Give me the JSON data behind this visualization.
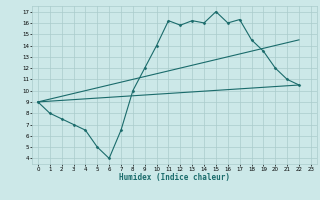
{
  "xlabel": "Humidex (Indice chaleur)",
  "bg_color": "#cce8e8",
  "grid_color": "#aacccc",
  "line_color": "#1a6b6b",
  "xmin": -0.5,
  "xmax": 23.5,
  "ymin": 3.5,
  "ymax": 17.5,
  "x_ticks": [
    0,
    1,
    2,
    3,
    4,
    5,
    6,
    7,
    8,
    9,
    10,
    11,
    12,
    13,
    14,
    15,
    16,
    17,
    18,
    19,
    20,
    21,
    22,
    23
  ],
  "y_ticks": [
    4,
    5,
    6,
    7,
    8,
    9,
    10,
    11,
    12,
    13,
    14,
    15,
    16,
    17
  ],
  "line1_x": [
    0,
    1,
    2,
    3,
    4,
    5,
    6,
    7,
    8,
    9,
    10,
    11,
    12,
    13,
    14,
    15,
    16,
    17,
    18,
    19,
    20,
    21,
    22
  ],
  "line1_y": [
    9.0,
    8.0,
    7.5,
    7.0,
    6.5,
    5.0,
    4.0,
    6.5,
    10.0,
    12.0,
    14.0,
    16.2,
    15.8,
    16.2,
    16.0,
    17.0,
    16.0,
    16.3,
    14.5,
    13.5,
    12.0,
    11.0,
    10.5
  ],
  "line2_x": [
    0,
    22
  ],
  "line2_y": [
    9.0,
    14.5
  ],
  "line3_x": [
    0,
    22
  ],
  "line3_y": [
    9.0,
    10.5
  ]
}
